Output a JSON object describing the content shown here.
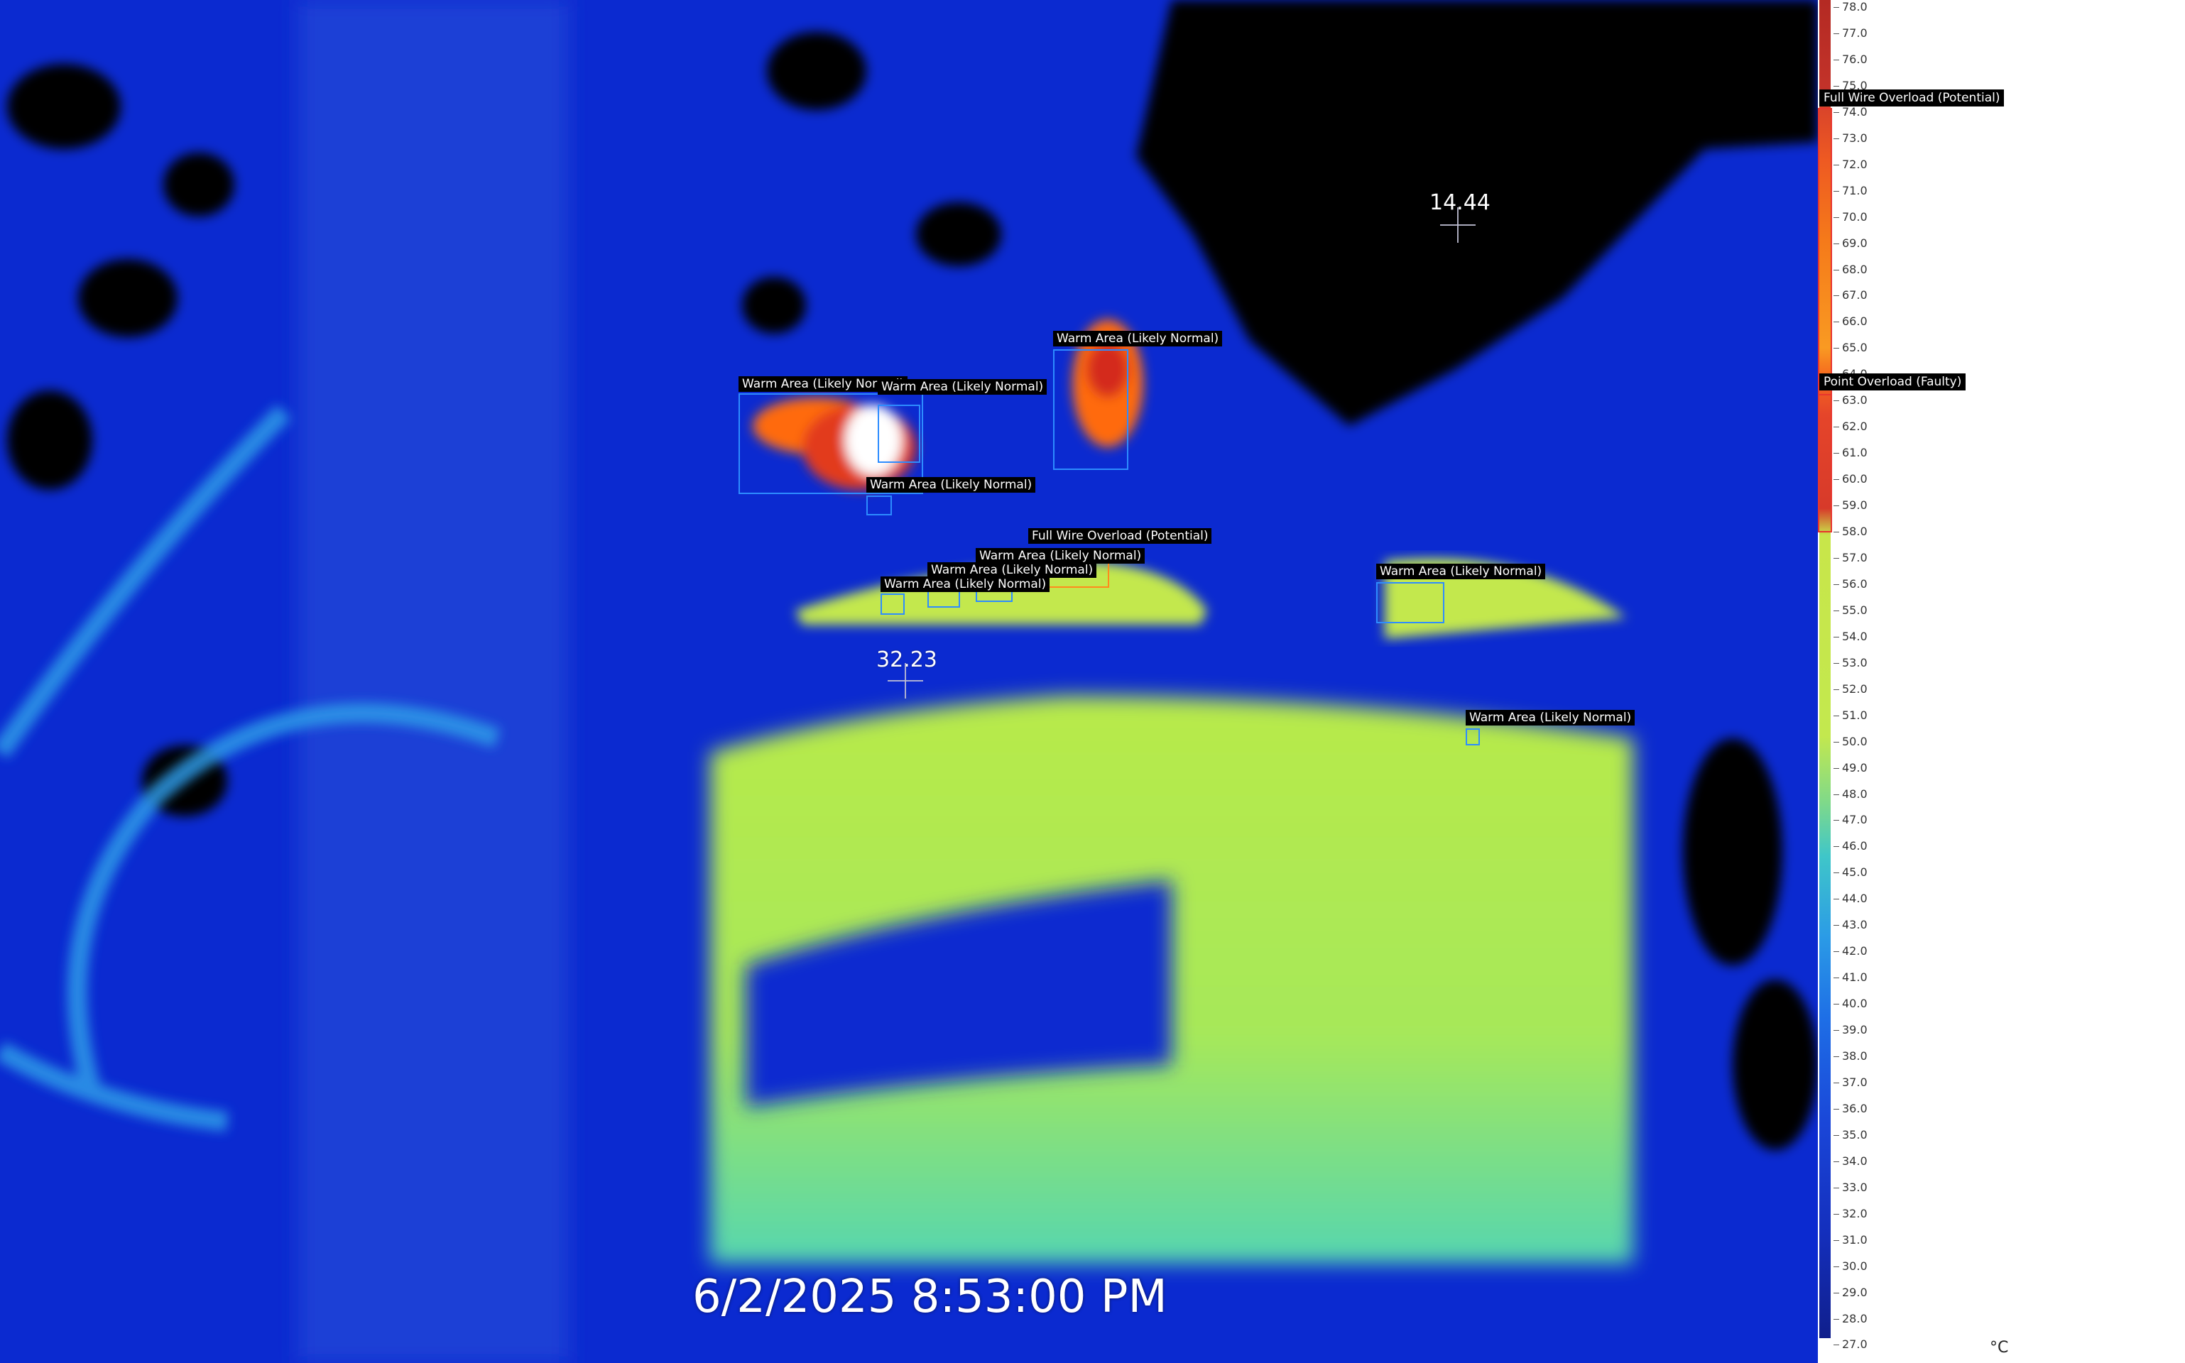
{
  "timestamp": "6/2/2025 8:53:00 PM",
  "temperature_points": [
    {
      "value": "14.44"
    },
    {
      "value": "32.23"
    }
  ],
  "detections": [
    {
      "label": "Warm Area (Likely Normal)",
      "color": "#2d8cff"
    },
    {
      "label": "Warm Area (Likely Normal)",
      "color": "#2d8cff"
    },
    {
      "label": "Warm Area (Likely Normal)",
      "color": "#2d8cff"
    },
    {
      "label": "Warm Area (Likely Normal)",
      "color": "#2d8cff"
    },
    {
      "label": "Full Wire Overload (Potential)",
      "color": "#ff8a1c"
    },
    {
      "label": "Warm Area (Likely Normal)",
      "color": "#2d8cff"
    },
    {
      "label": "Warm Area (Likely Normal)",
      "color": "#2d8cff"
    },
    {
      "label": "Warm Area (Likely Normal)",
      "color": "#2d8cff"
    },
    {
      "label": "Warm Area (Likely Normal)",
      "color": "#2d8cff"
    },
    {
      "label": "Warm Area (Likely Normal)",
      "color": "#2d8cff"
    }
  ],
  "scale": {
    "unit": "°C",
    "min": 27.0,
    "max": 78.0,
    "ticks": [
      "78.0",
      "77.0",
      "76.0",
      "75.0",
      "74.0",
      "73.0",
      "72.0",
      "71.0",
      "70.0",
      "69.0",
      "68.0",
      "67.0",
      "66.0",
      "65.0",
      "64.0",
      "63.0",
      "62.0",
      "61.0",
      "60.0",
      "59.0",
      "58.0",
      "57.0",
      "56.0",
      "55.0",
      "54.0",
      "53.0",
      "52.0",
      "51.0",
      "50.0",
      "49.0",
      "48.0",
      "47.0",
      "46.0",
      "45.0",
      "44.0",
      "43.0",
      "42.0",
      "41.0",
      "40.0",
      "39.0",
      "38.0",
      "37.0",
      "36.0",
      "35.0",
      "34.0",
      "33.0",
      "32.0",
      "31.0",
      "30.0",
      "29.0",
      "28.0",
      "27.0"
    ],
    "thresholds": [
      {
        "label": "Full Wire Overload (Potential)",
        "from": 58.0,
        "to": 74.0
      },
      {
        "label": "Point Overload (Faulty)",
        "from": 58.0,
        "to": 63.0
      }
    ]
  },
  "palette": {
    "background_blue": "#0a27c8",
    "normal_box": "#2d8cff",
    "overload_box": "#ff8a1c",
    "threshold_marker": "#e8352e"
  }
}
